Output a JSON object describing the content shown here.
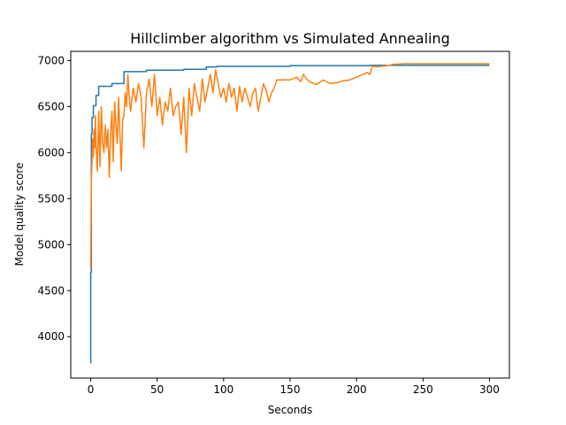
{
  "chart_data": {
    "type": "line",
    "title": "Hillclimber algorithm vs Simulated Annealing",
    "xlabel": "Seconds",
    "ylabel": "Model quality score",
    "xlim": [
      -15,
      315
    ],
    "ylim": [
      3550,
      7100
    ],
    "xticks": [
      0,
      50,
      100,
      150,
      200,
      250,
      300
    ],
    "yticks": [
      4000,
      4500,
      5000,
      5500,
      6000,
      6500,
      7000
    ],
    "grid": false,
    "legend": "none",
    "series": [
      {
        "color": "#1f77b4",
        "x": [
          0,
          0,
          0.5,
          0.5,
          1,
          1,
          2,
          2,
          4,
          4,
          6,
          6,
          16,
          16,
          25,
          25,
          42,
          42,
          70,
          70,
          87,
          87,
          95,
          95,
          150,
          150,
          210,
          210,
          300
        ],
        "y": [
          3710,
          4700,
          4700,
          6200,
          6200,
          6380,
          6380,
          6510,
          6510,
          6620,
          6620,
          6720,
          6720,
          6750,
          6750,
          6880,
          6880,
          6895,
          6895,
          6905,
          6905,
          6930,
          6930,
          6938,
          6938,
          6945,
          6945,
          6948,
          6948
        ]
      },
      {
        "color": "#ff7f0e",
        "x": [
          0,
          0.5,
          1,
          1.5,
          2,
          2.5,
          3,
          3.5,
          4,
          5,
          6,
          7,
          8,
          9,
          10,
          11,
          12,
          13,
          14,
          15,
          16,
          17,
          18,
          19,
          20,
          21,
          22,
          23,
          24,
          25,
          26,
          27,
          28,
          29,
          30,
          32,
          34,
          36,
          38,
          40,
          42,
          44,
          46,
          48,
          50,
          52,
          54,
          56,
          58,
          60,
          62,
          64,
          66,
          68,
          70,
          72,
          74,
          76,
          78,
          80,
          82,
          84,
          86,
          88,
          90,
          92,
          94,
          96,
          98,
          100,
          102,
          104,
          106,
          108,
          110,
          112,
          114,
          116,
          118,
          120,
          122,
          124,
          126,
          128,
          130,
          132,
          134,
          136,
          138,
          140,
          145,
          150,
          155,
          158,
          160,
          163,
          166,
          170,
          175,
          180,
          185,
          190,
          195,
          200,
          205,
          208,
          210,
          212,
          215,
          220,
          225,
          228,
          232,
          235,
          240,
          250,
          260,
          270,
          280,
          290,
          300
        ],
        "y": [
          4730,
          5700,
          5900,
          6150,
          5950,
          6250,
          6050,
          6400,
          6100,
          5800,
          6450,
          5850,
          6500,
          6100,
          6000,
          6300,
          6050,
          6250,
          5730,
          6200,
          6450,
          5900,
          6550,
          6300,
          6100,
          6600,
          6200,
          5800,
          6350,
          6400,
          6650,
          6500,
          6850,
          6600,
          6450,
          6700,
          6550,
          6750,
          6600,
          6050,
          6650,
          6800,
          6500,
          6850,
          6400,
          6600,
          6300,
          6550,
          6450,
          6700,
          6400,
          6500,
          6550,
          6200,
          6600,
          6000,
          6700,
          6400,
          6750,
          6600,
          6450,
          6800,
          6550,
          6700,
          6850,
          6650,
          6900,
          6750,
          6600,
          6700,
          6550,
          6750,
          6600,
          6700,
          6450,
          6720,
          6550,
          6700,
          6600,
          6500,
          6650,
          6700,
          6450,
          6600,
          6750,
          6680,
          6550,
          6650,
          6700,
          6790,
          6790,
          6790,
          6820,
          6770,
          6850,
          6790,
          6760,
          6740,
          6790,
          6750,
          6760,
          6780,
          6790,
          6820,
          6850,
          6870,
          6850,
          6940,
          6930,
          6940,
          6950,
          6960,
          6960,
          6965,
          6965,
          6965,
          6965,
          6965,
          6965,
          6965,
          6965
        ]
      }
    ]
  }
}
